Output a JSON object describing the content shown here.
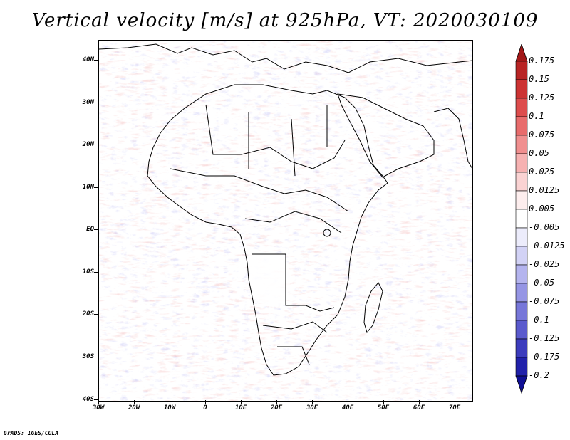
{
  "title": "Vertical velocity [m/s] at 925hPa, VT: 2020030109",
  "footer": "GrADS: IGES/COLA",
  "map": {
    "projection": "lat-lon",
    "lon_range": [
      -30,
      75
    ],
    "lat_range": [
      -40,
      45
    ],
    "field": "vertical velocity",
    "level": "925hPa",
    "valid_time": "2020030109"
  },
  "lat_labels": [
    "40N",
    "30N",
    "20N",
    "10N",
    "EQ",
    "10S",
    "20S",
    "30S",
    "40S"
  ],
  "lon_labels": [
    "30W",
    "20W",
    "10W",
    "0",
    "10E",
    "20E",
    "30E",
    "40E",
    "50E",
    "60E",
    "70E"
  ],
  "colorbar": {
    "labels": [
      "0.175",
      "0.15",
      "0.125",
      "0.1",
      "0.075",
      "0.05",
      "0.025",
      "0.0125",
      "0.005",
      "-0.005",
      "-0.0125",
      "-0.025",
      "-0.05",
      "-0.075",
      "-0.1",
      "-0.125",
      "-0.175",
      "-0.2"
    ],
    "colors": [
      "#a31818",
      "#b82424",
      "#cc3333",
      "#dd4c4c",
      "#e86c6c",
      "#f08f8f",
      "#f6b2b2",
      "#fad3d3",
      "#fdeeee",
      "#ffffff",
      "#ececfb",
      "#d2d2f5",
      "#b4b4ee",
      "#9595e4",
      "#7777d9",
      "#5a5acd",
      "#3c3cbd",
      "#2121aa",
      "#100f94"
    ]
  }
}
